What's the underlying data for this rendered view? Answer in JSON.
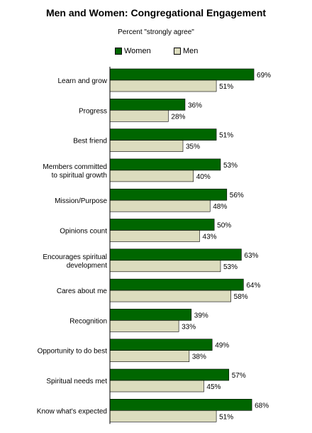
{
  "chart_data": {
    "type": "bar",
    "orientation": "horizontal",
    "title": "Men and Women: Congregational Engagement",
    "subtitle": "Percent \"strongly agree\"",
    "xlim": [
      0,
      70
    ],
    "legend_position": "top",
    "grid": false,
    "categories": [
      [
        "Learn and grow"
      ],
      [
        "Progress"
      ],
      [
        "Best friend"
      ],
      [
        "Members committed",
        "to spiritual growth"
      ],
      [
        "Mission/Purpose"
      ],
      [
        "Opinions count"
      ],
      [
        "Encourages spiritual",
        "development"
      ],
      [
        "Cares about me"
      ],
      [
        "Recognition"
      ],
      [
        "Opportunity to do best"
      ],
      [
        "Spiritual needs met"
      ],
      [
        "Know what's expected"
      ]
    ],
    "series": [
      {
        "name": "Women",
        "color": "#006600",
        "values": [
          69,
          36,
          51,
          53,
          56,
          50,
          63,
          64,
          39,
          49,
          57,
          68
        ],
        "labels": [
          "69%",
          "36%",
          "51%",
          "53%",
          "56%",
          "50%",
          "63%",
          "64%",
          "39%",
          "49%",
          "57%",
          "68%"
        ]
      },
      {
        "name": "Men",
        "color": "#dcdcbe",
        "values": [
          51,
          28,
          35,
          40,
          48,
          43,
          53,
          58,
          33,
          38,
          45,
          51
        ],
        "labels": [
          "51%",
          "28%",
          "35%",
          "40%",
          "48%",
          "43%",
          "53%",
          "58%",
          "33%",
          "38%",
          "45%",
          "51%"
        ]
      }
    ]
  }
}
